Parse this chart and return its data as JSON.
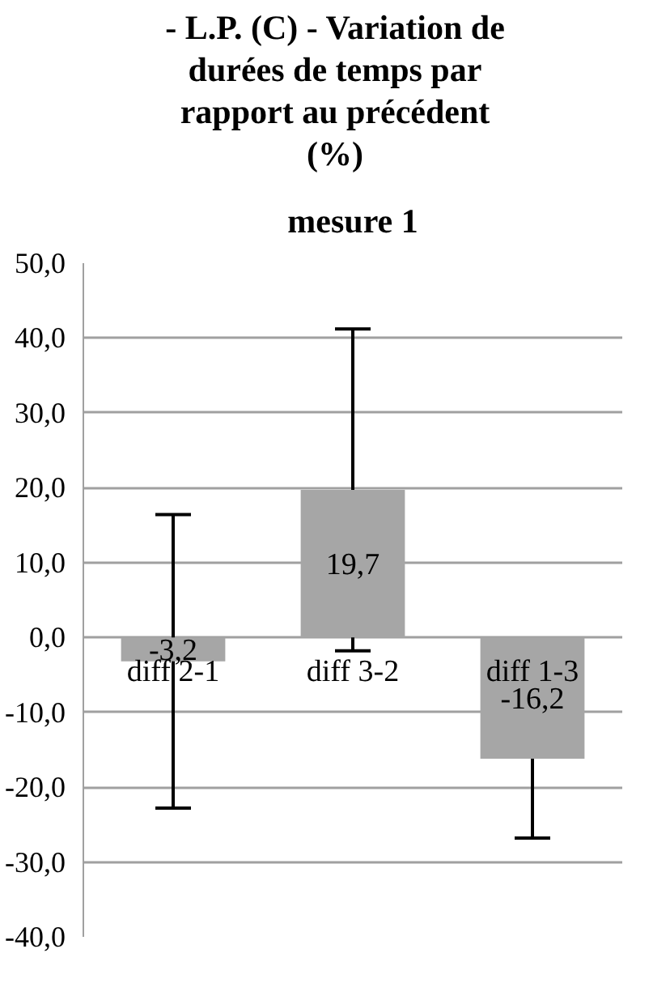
{
  "chart_data": {
    "type": "bar",
    "title": "- L.P. (C) - Variation de\ndurées de temps par\nrapport au précédent\n(%)",
    "subtitle": "mesure 1",
    "categories": [
      "diff 2-1",
      "diff 3-2",
      "diff 1-3"
    ],
    "values": [
      -3.2,
      19.7,
      -16.2
    ],
    "color": "#a6a6a6",
    "errors": [
      19.6,
      21.5,
      10.6
    ],
    "value_labels": [
      "-3,2",
      "19,7",
      "-16,2"
    ],
    "ylim": [
      -40,
      50
    ],
    "yticks": [
      {
        "value": -40,
        "label": "-40,0"
      },
      {
        "value": -30,
        "label": "-30,0"
      },
      {
        "value": -20,
        "label": "-20,0"
      },
      {
        "value": -10,
        "label": "-10,0"
      },
      {
        "value": 0,
        "label": "0,0"
      },
      {
        "value": 10,
        "label": "10,0"
      },
      {
        "value": 20,
        "label": "20,0"
      },
      {
        "value": 30,
        "label": "30,0"
      },
      {
        "value": 40,
        "label": "40,0"
      },
      {
        "value": 50,
        "label": "50,0"
      }
    ],
    "grid": "y"
  }
}
